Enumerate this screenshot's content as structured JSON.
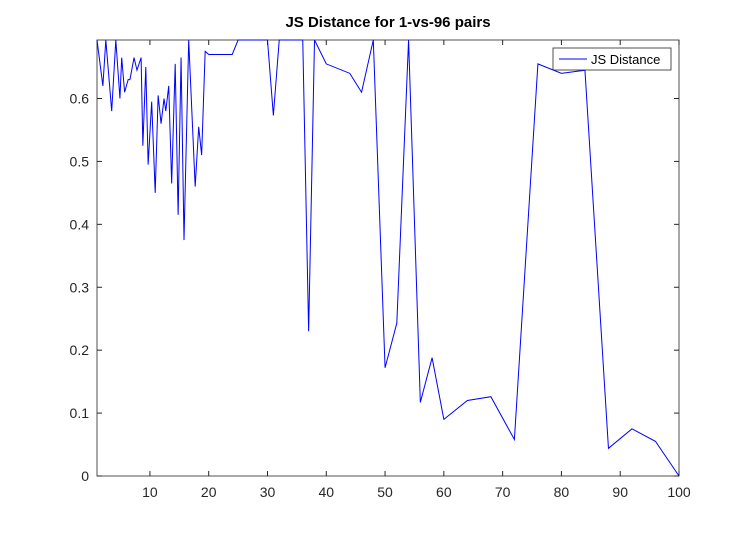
{
  "chart_data": {
    "type": "line",
    "title": "JS Distance for 1-vs-96 pairs",
    "x": [
      1,
      2,
      2.5,
      3.5,
      4.2,
      4.9,
      5.2,
      5.7,
      6.3,
      6.6,
      7.3,
      7.8,
      8.5,
      8.8,
      9.3,
      9.7,
      10.3,
      10.9,
      11.4,
      11.9,
      12.4,
      12.7,
      13.2,
      13.7,
      14.3,
      14.8,
      15.3,
      15.8,
      16.6,
      17.7,
      18.3,
      18.8,
      19.4,
      20,
      24,
      25,
      30,
      31,
      32,
      36,
      37,
      38,
      40,
      44,
      46,
      48,
      50,
      52,
      54,
      56,
      58,
      60,
      64,
      68,
      72,
      76,
      80,
      84,
      88,
      92,
      96,
      100
    ],
    "series": [
      {
        "name": "JS Distance",
        "color": "#0000ff",
        "values": [
          0.693,
          0.62,
          0.693,
          0.58,
          0.693,
          0.6,
          0.665,
          0.61,
          0.63,
          0.63,
          0.665,
          0.645,
          0.665,
          0.525,
          0.65,
          0.495,
          0.595,
          0.45,
          0.605,
          0.56,
          0.6,
          0.58,
          0.62,
          0.465,
          0.655,
          0.415,
          0.665,
          0.375,
          0.693,
          0.46,
          0.555,
          0.51,
          0.675,
          0.67,
          0.67,
          0.693,
          0.693,
          0.573,
          0.693,
          0.693,
          0.23,
          0.693,
          0.655,
          0.64,
          0.61,
          0.693,
          0.172,
          0.243,
          0.693,
          0.117,
          0.188,
          0.09,
          0.12,
          0.126,
          0.058,
          0.655,
          0.64,
          0.645,
          0.044,
          0.075,
          0.055,
          0
        ]
      }
    ],
    "xlim": [
      1,
      100
    ],
    "ylim": [
      0,
      0.693
    ],
    "xticks": [
      10,
      20,
      30,
      40,
      50,
      60,
      70,
      80,
      90,
      100
    ],
    "yticks": [
      0,
      0.1,
      0.2,
      0.3,
      0.4,
      0.5,
      0.6
    ],
    "legend": "upper right"
  }
}
